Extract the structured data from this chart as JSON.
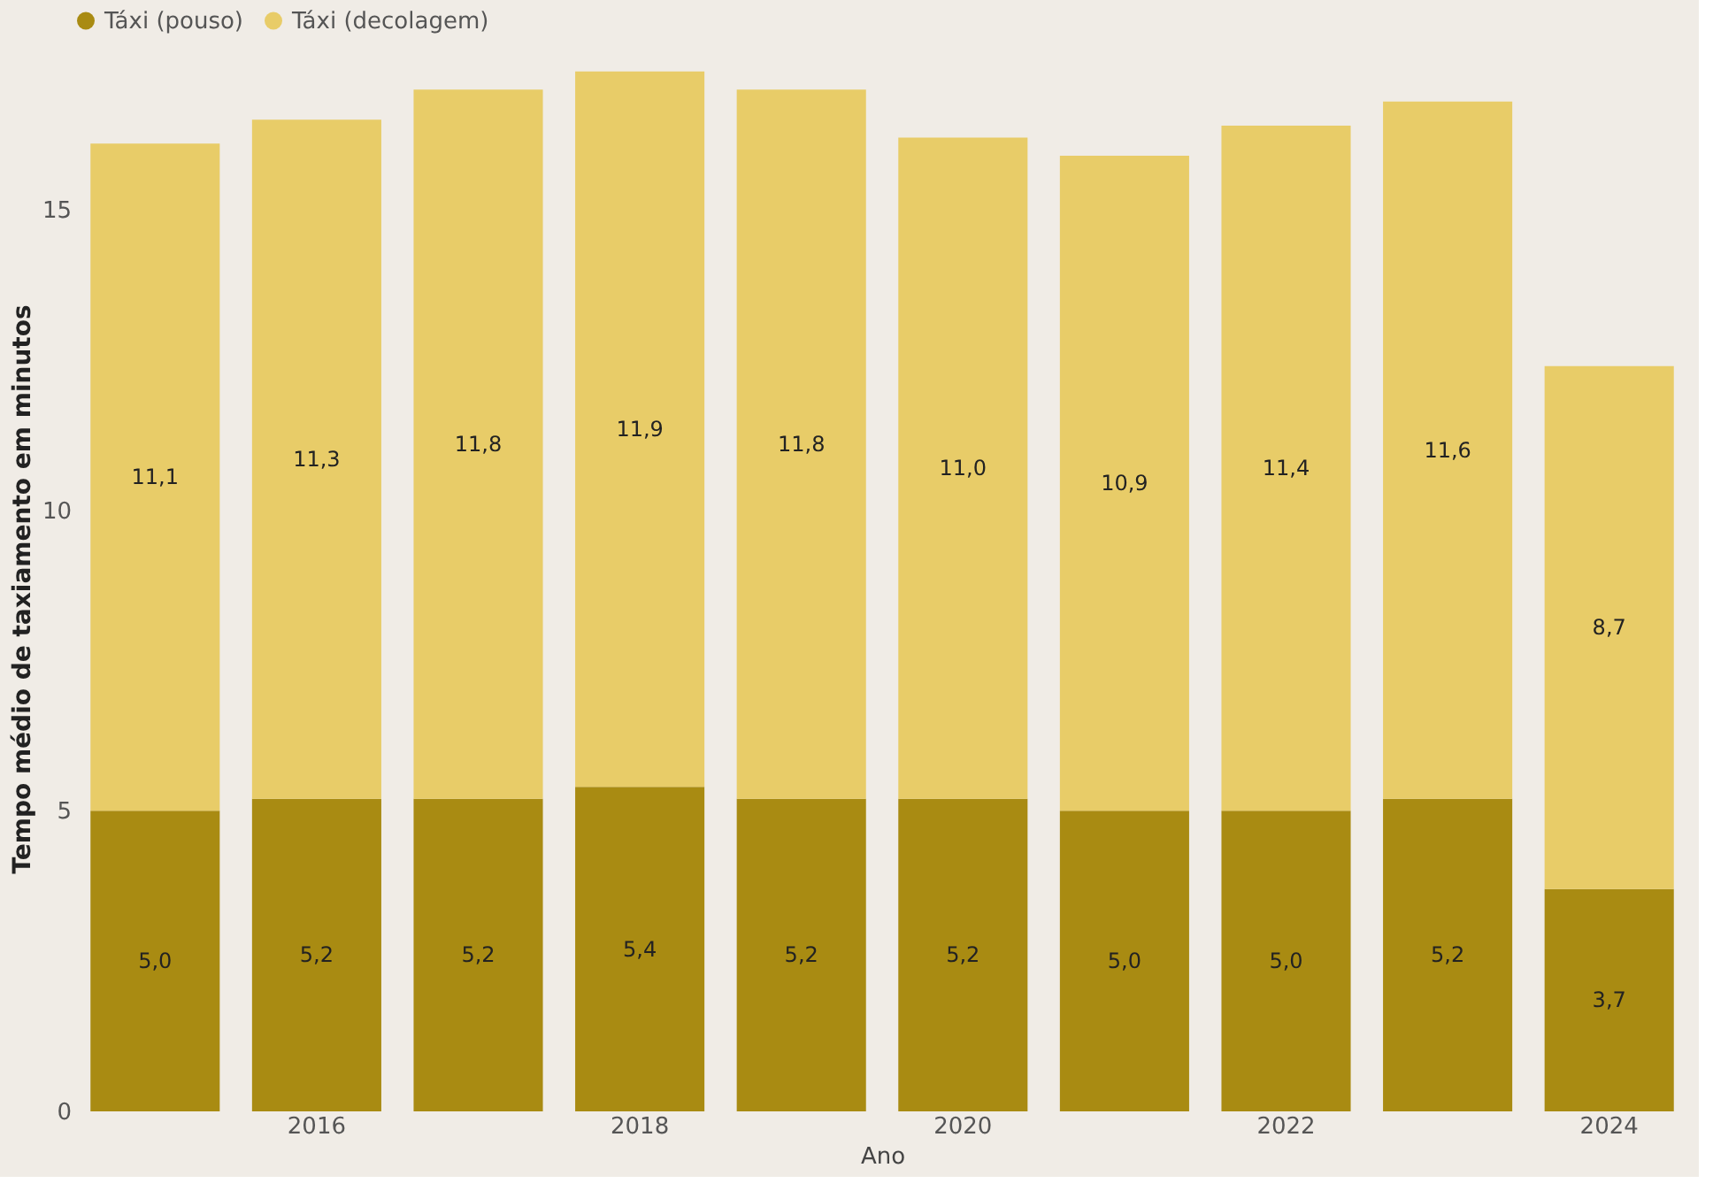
{
  "chart_data": {
    "type": "bar",
    "stacked": true,
    "legend": "top",
    "grid": false,
    "xlabel": "Ano",
    "ylabel": "Tempo médio de taxiamento em minutos",
    "categories": [
      null,
      "2016",
      null,
      "2018",
      null,
      "2020",
      null,
      "2022",
      null,
      "2024"
    ],
    "ylim": [
      0,
      17.4
    ],
    "yticks": [
      0,
      5,
      10,
      15
    ],
    "series": [
      {
        "name": "Táxi (pouso)",
        "color": "#a98b12",
        "values": [
          5.0,
          5.2,
          5.2,
          5.4,
          5.2,
          5.2,
          5.0,
          5.0,
          5.2,
          3.7
        ],
        "value_labels": [
          "5,0",
          "5,2",
          "5,2",
          "5,4",
          "5,2",
          "5,2",
          "5,0",
          "5,0",
          "5,2",
          "3,7"
        ]
      },
      {
        "name": "Táxi (decolagem)",
        "color": "#e8cc68",
        "values": [
          11.1,
          11.3,
          11.8,
          11.9,
          11.8,
          11.0,
          10.9,
          11.4,
          11.6,
          8.7
        ],
        "value_labels": [
          "11,1",
          "11,3",
          "11,8",
          "11,9",
          "11,8",
          "11,0",
          "10,9",
          "11,4",
          "11,6",
          "8,7"
        ]
      }
    ]
  }
}
